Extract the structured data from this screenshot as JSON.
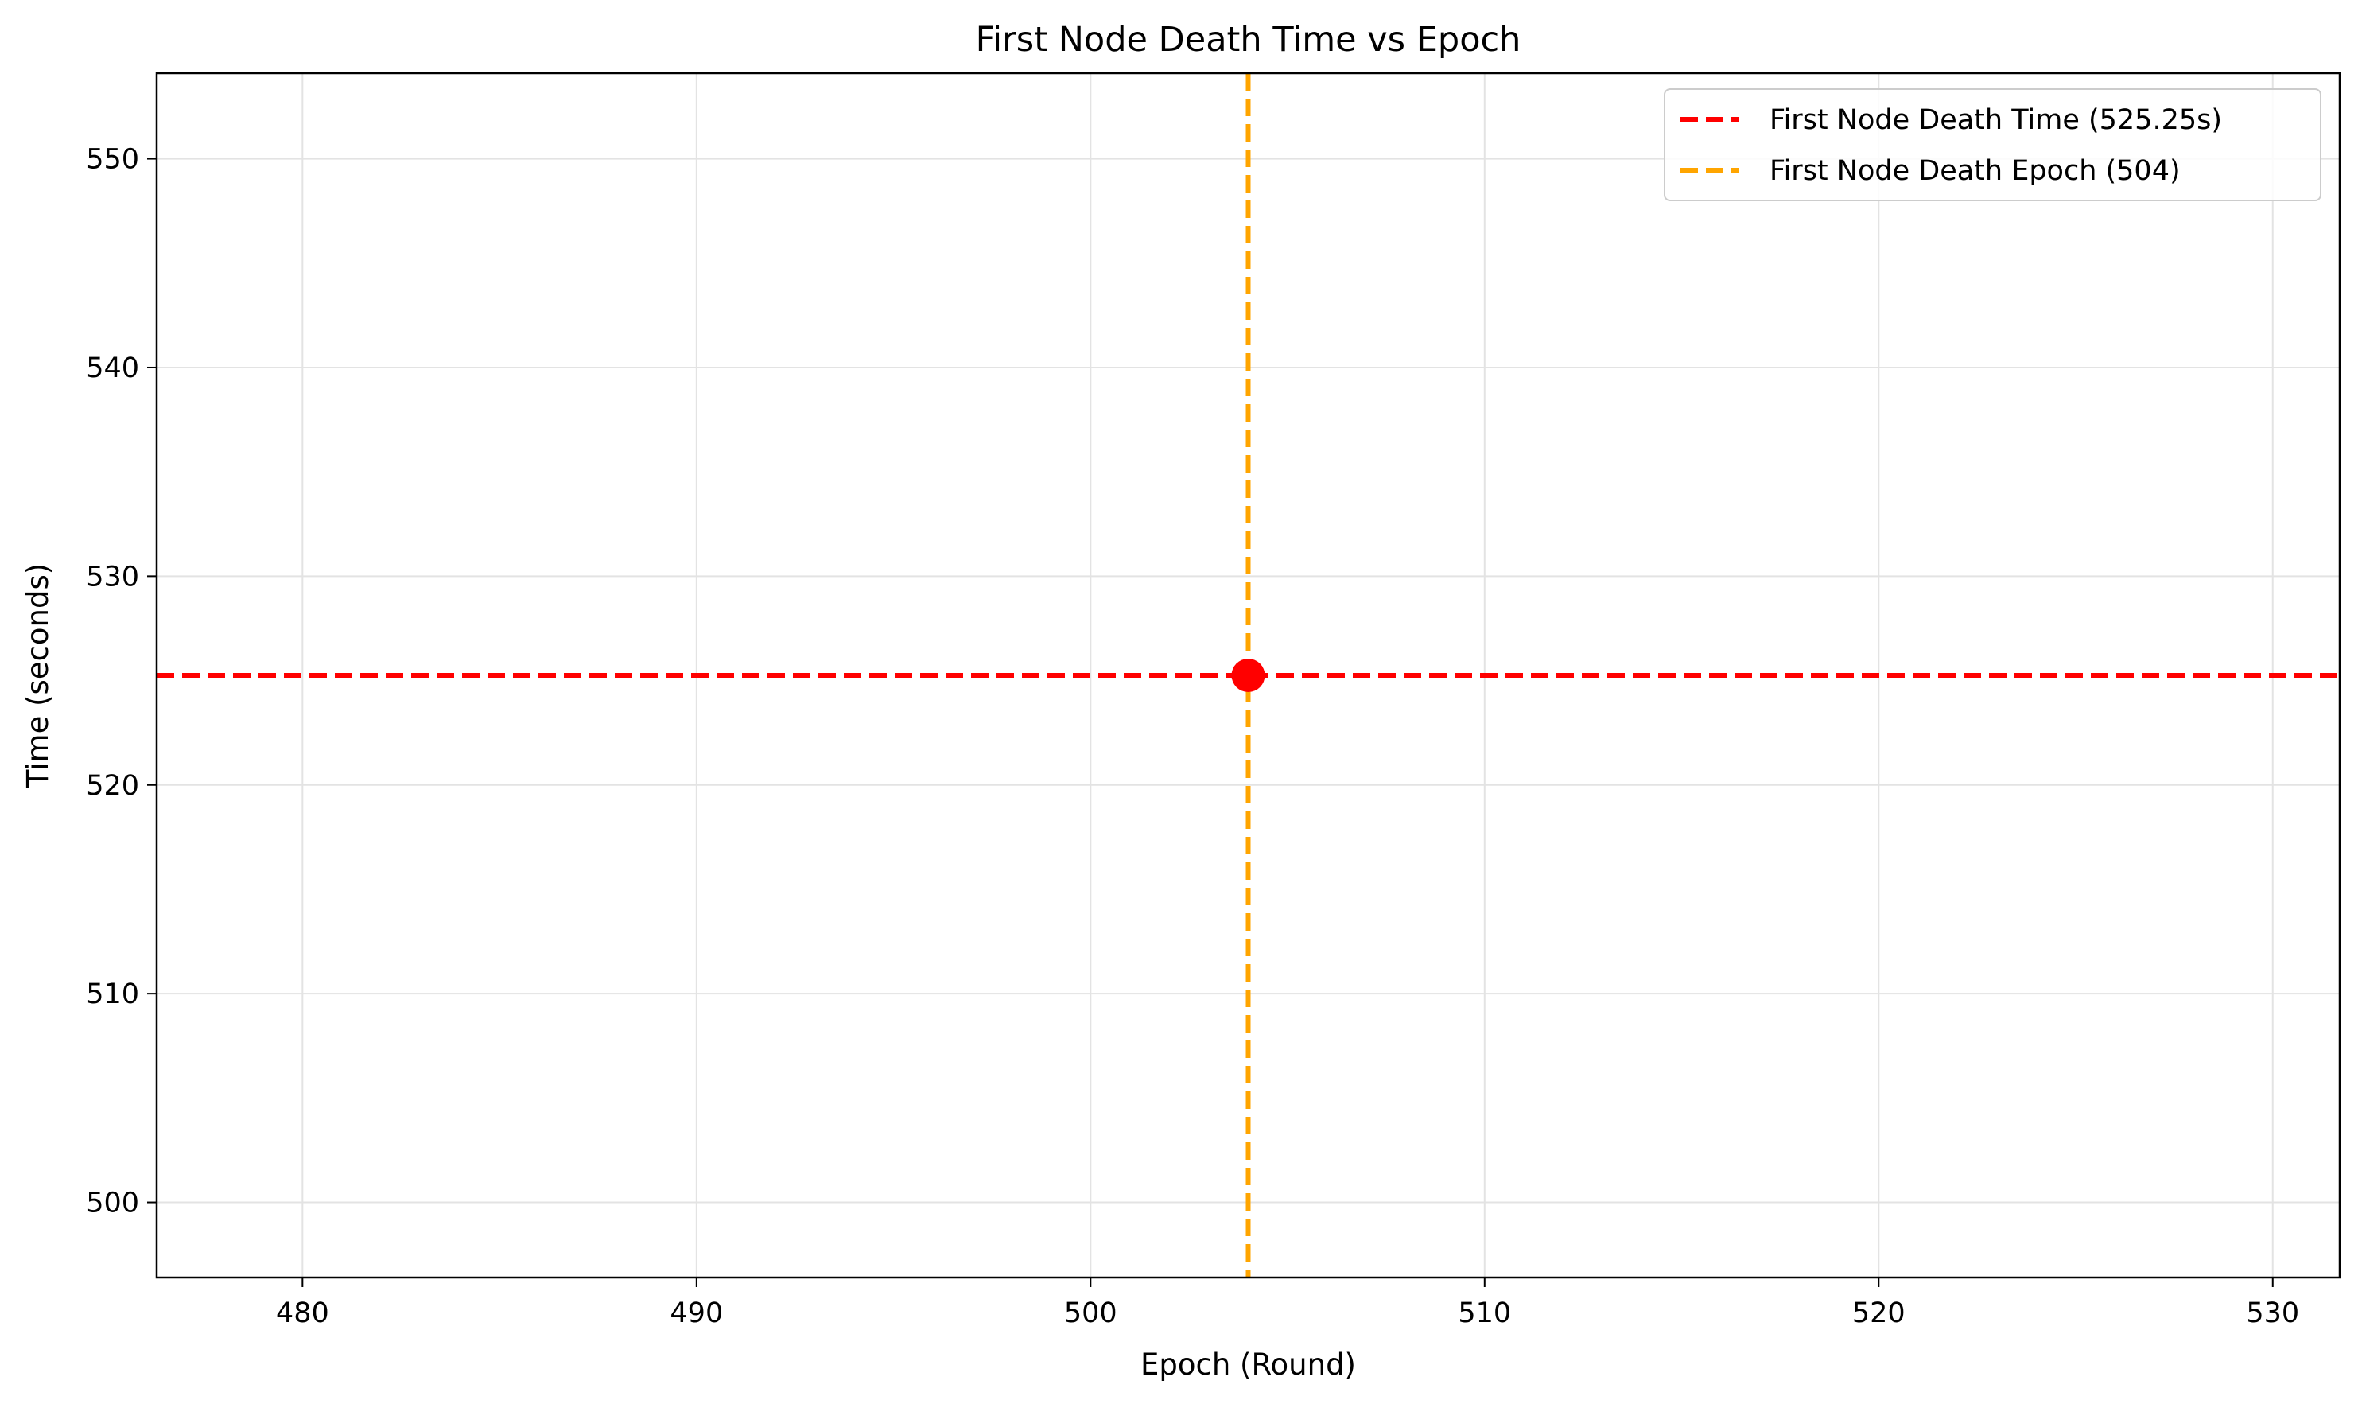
{
  "chart_data": {
    "type": "scatter",
    "title": "First Node Death Time vs Epoch",
    "xlabel": "Epoch (Round)",
    "ylabel": "Time (seconds)",
    "xlim": [
      476.3,
      531.7
    ],
    "ylim": [
      496.4,
      554.1
    ],
    "xticks": [
      480,
      490,
      500,
      510,
      520,
      530
    ],
    "yticks": [
      500,
      510,
      520,
      530,
      540,
      550
    ],
    "xtick_labels": [
      "480",
      "490",
      "500",
      "510",
      "520",
      "530"
    ],
    "ytick_labels": [
      "500",
      "510",
      "520",
      "530",
      "540",
      "550"
    ],
    "grid": true,
    "legend_position": "top-right",
    "points": [
      {
        "x": 504,
        "y": 525.25,
        "color": "#ff0000"
      }
    ],
    "hlines": [
      {
        "y": 525.25,
        "label": "First Node Death Time (525.25s)",
        "color": "#ff0000",
        "style": "dashed"
      }
    ],
    "vlines": [
      {
        "x": 504,
        "label": "First Node Death Epoch (504)",
        "color": "#ffa500",
        "style": "dashed"
      }
    ],
    "legend": [
      {
        "label": "First Node Death Time (525.25s)",
        "color": "#ff0000",
        "style": "dashed"
      },
      {
        "label": "First Node Death Epoch (504)",
        "color": "#ffa500",
        "style": "dashed"
      }
    ]
  }
}
